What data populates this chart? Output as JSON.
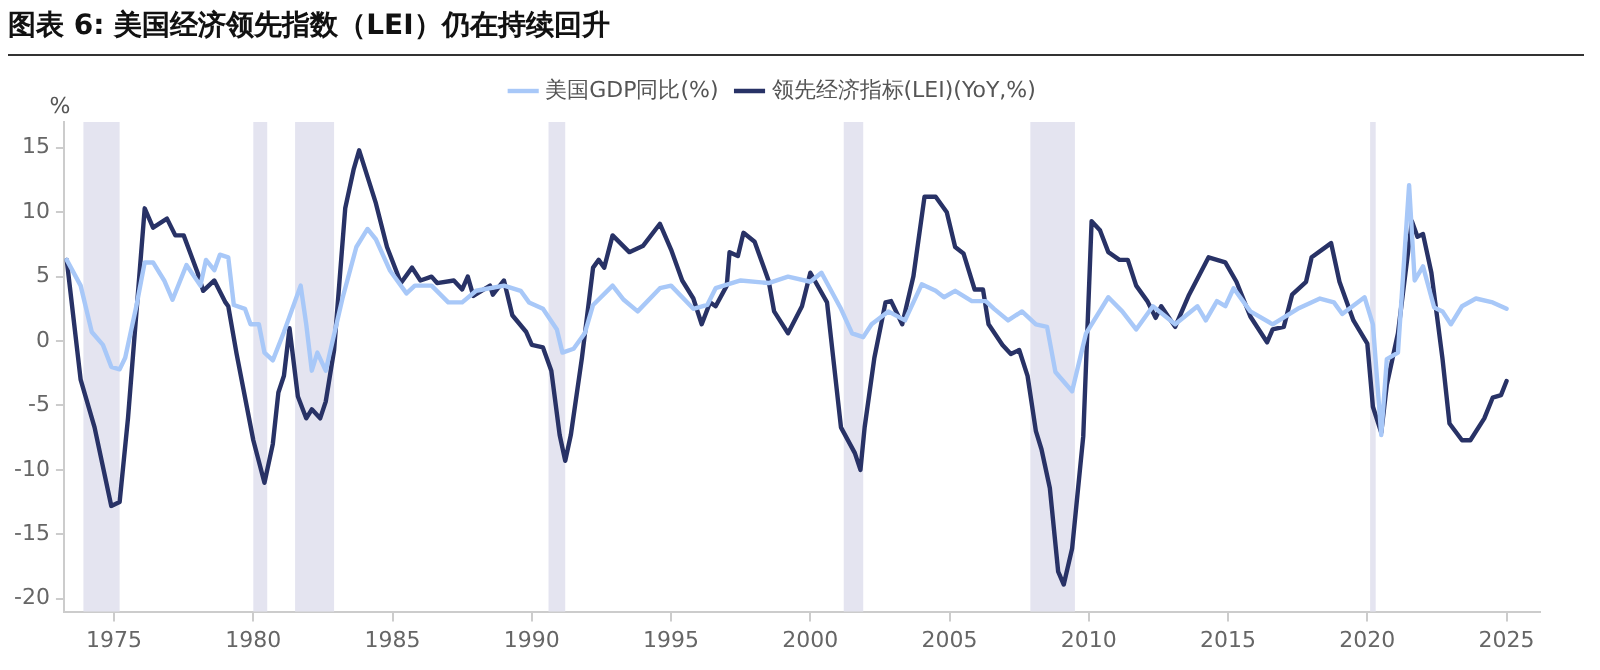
{
  "chart_data": {
    "type": "line",
    "title": "图表 6: 美国经济领先指数（LEI）仍在持续回升",
    "ylabel": "%",
    "xlim": [
      1973.2,
      2026.2
    ],
    "xticks": [
      1975,
      1980,
      1985,
      1990,
      1995,
      2000,
      2005,
      2010,
      2015,
      2020,
      2025
    ],
    "ylim": [
      -21,
      17
    ],
    "yticks": [
      -20,
      -15,
      -10,
      -5,
      0,
      5,
      10,
      15
    ],
    "grid": false,
    "legend": "top",
    "marker": "none",
    "line_style": "solid",
    "bands": [
      {
        "axis": "x",
        "from": 1973.9,
        "to": 1975.2,
        "color": "#e4e4f0"
      },
      {
        "axis": "x",
        "from": 1980.0,
        "to": 1980.5,
        "color": "#e4e4f0"
      },
      {
        "axis": "x",
        "from": 1981.5,
        "to": 1982.9,
        "color": "#e4e4f0"
      },
      {
        "axis": "x",
        "from": 1990.6,
        "to": 1991.2,
        "color": "#e4e4f0"
      },
      {
        "axis": "x",
        "from": 2001.2,
        "to": 2001.9,
        "color": "#e4e4f0"
      },
      {
        "axis": "x",
        "from": 2007.9,
        "to": 2009.5,
        "color": "#e4e4f0"
      },
      {
        "axis": "x",
        "from": 2020.1,
        "to": 2020.3,
        "color": "#e4e4f0"
      }
    ],
    "series": [
      {
        "name": "美国GDP同比(%)",
        "color": "#a8c8f8",
        "x": [
          1973.3,
          1973.8,
          1974.2,
          1974.6,
          1974.9,
          1975.2,
          1975.4,
          1975.8,
          1976.1,
          1976.4,
          1976.8,
          1977.1,
          1977.6,
          1978.1,
          1978.3,
          1978.6,
          1978.8,
          1979.1,
          1979.3,
          1979.7,
          1979.9,
          1980.2,
          1980.4,
          1980.7,
          1981.1,
          1981.7,
          1981.9,
          1982.1,
          1982.3,
          1982.6,
          1983.2,
          1983.7,
          1984.1,
          1984.4,
          1984.9,
          1985.5,
          1985.8,
          1986.4,
          1987.0,
          1987.5,
          1988.0,
          1989.0,
          1989.6,
          1989.9,
          1990.4,
          1990.9,
          1991.1,
          1991.5,
          1991.9,
          1992.2,
          1992.9,
          1993.3,
          1993.8,
          1994.6,
          1995.0,
          1995.8,
          1996.3,
          1996.6,
          1997.5,
          1998.5,
          1999.2,
          2000.0,
          2000.4,
          2001.1,
          2001.5,
          2001.9,
          2002.2,
          2002.8,
          2003.4,
          2004.0,
          2004.5,
          2004.8,
          2005.2,
          2005.8,
          2006.3,
          2006.6,
          2007.1,
          2007.6,
          2008.1,
          2008.5,
          2008.8,
          2009.4,
          2009.9,
          2010.7,
          2011.2,
          2011.7,
          2012.3,
          2013.1,
          2013.9,
          2014.2,
          2014.6,
          2014.9,
          2015.2,
          2015.8,
          2016.6,
          2017.5,
          2018.3,
          2018.8,
          2019.1,
          2019.9,
          2020.2,
          2020.5,
          2020.7,
          2021.1,
          2021.5,
          2021.7,
          2022.0,
          2022.4,
          2022.7,
          2023.0,
          2023.4,
          2023.9,
          2024.5,
          2025.0
        ],
        "values": [
          6.3,
          4.3,
          0.7,
          -0.3,
          -2,
          -2.2,
          -1.3,
          2.7,
          6.1,
          6.1,
          4.7,
          3.2,
          5.9,
          4.3,
          6.3,
          5.5,
          6.7,
          6.5,
          2.8,
          2.5,
          1.3,
          1.3,
          -0.9,
          -1.5,
          0.7,
          4.3,
          1.3,
          -2.3,
          -0.9,
          -2.3,
          3.3,
          7.3,
          8.7,
          7.9,
          5.5,
          3.7,
          4.3,
          4.3,
          3,
          3,
          3.9,
          4.3,
          3.9,
          3,
          2.5,
          0.9,
          -0.9,
          -0.6,
          0.6,
          2.8,
          4.3,
          3.2,
          2.3,
          4.1,
          4.3,
          2.5,
          2.8,
          4.1,
          4.7,
          4.5,
          5,
          4.6,
          5.3,
          2.5,
          0.6,
          0.3,
          1.3,
          2.3,
          1.6,
          4.4,
          3.9,
          3.4,
          3.9,
          3.1,
          3.1,
          2.5,
          1.6,
          2.3,
          1.3,
          1.1,
          -2.4,
          -3.9,
          0.6,
          3.4,
          2.3,
          0.9,
          2.7,
          1.3,
          2.7,
          1.6,
          3.1,
          2.7,
          4.1,
          2.3,
          1.3,
          2.5,
          3.3,
          3,
          2.1,
          3.4,
          1.3,
          -7.3,
          -1.4,
          -0.9,
          12.1,
          4.7,
          5.8,
          2.6,
          2.3,
          1.3,
          2.7,
          3.3,
          3,
          2.5
        ]
      },
      {
        "name": "领先经济指标(LEI)(YoY,%)",
        "color": "#283266",
        "x": [
          1973.3,
          1973.8,
          1974.3,
          1974.9,
          1975.2,
          1975.5,
          1976.1,
          1976.4,
          1976.9,
          1977.2,
          1977.5,
          1978.0,
          1978.2,
          1978.6,
          1979.0,
          1979.1,
          1979.4,
          1980.0,
          1980.4,
          1980.7,
          1980.9,
          1981.1,
          1981.3,
          1981.6,
          1981.9,
          1982.1,
          1982.4,
          1982.6,
          1982.9,
          1983.3,
          1983.6,
          1983.8,
          1984.4,
          1984.8,
          1985.3,
          1985.7,
          1986.0,
          1986.4,
          1986.6,
          1987.2,
          1987.5,
          1987.7,
          1987.9,
          1988.5,
          1988.6,
          1989.0,
          1989.3,
          1989.8,
          1990.0,
          1990.4,
          1990.7,
          1991.0,
          1991.2,
          1991.4,
          1991.8,
          1992.2,
          1992.4,
          1992.6,
          1992.9,
          1993.5,
          1994.0,
          1994.6,
          1995.0,
          1995.4,
          1995.8,
          1996.1,
          1996.4,
          1996.6,
          1997.0,
          1997.1,
          1997.4,
          1997.6,
          1998.0,
          1998.5,
          1998.7,
          1999.2,
          1999.7,
          2000.0,
          2000.6,
          2001.1,
          2001.6,
          2001.8,
          2001.95,
          2002.3,
          2002.7,
          2002.9,
          2003.3,
          2003.7,
          2004.1,
          2004.5,
          2004.9,
          2005.2,
          2005.5,
          2005.9,
          2006.2,
          2006.4,
          2006.9,
          2007.2,
          2007.5,
          2007.8,
          2008.1,
          2008.3,
          2008.6,
          2008.9,
          2009.1,
          2009.4,
          2009.8,
          2010.1,
          2010.4,
          2010.7,
          2011.1,
          2011.4,
          2011.7,
          2012.1,
          2012.4,
          2012.6,
          2013.1,
          2013.6,
          2014.3,
          2014.9,
          2015.3,
          2015.8,
          2016.4,
          2016.6,
          2017.0,
          2017.3,
          2017.8,
          2018.0,
          2018.7,
          2019.0,
          2019.5,
          2020.0,
          2020.2,
          2020.5,
          2020.7,
          2021.1,
          2021.6,
          2021.8,
          2022.0,
          2022.3,
          2022.7,
          2022.95,
          2023.4,
          2023.7,
          2024.2,
          2024.5,
          2024.8,
          2025.0
        ],
        "values": [
          6.3,
          -3,
          -6.7,
          -12.8,
          -12.5,
          -6,
          10.3,
          8.8,
          9.5,
          8.2,
          8.2,
          5.3,
          3.9,
          4.7,
          3,
          2.7,
          -1,
          -7.7,
          -11,
          -8,
          -4,
          -2.7,
          1,
          -4.3,
          -6,
          -5.3,
          -6,
          -4.7,
          -0.7,
          10.3,
          13.3,
          14.8,
          10.7,
          7.3,
          4.5,
          5.7,
          4.7,
          5,
          4.5,
          4.7,
          4,
          5,
          3.5,
          4.3,
          3.6,
          4.7,
          2,
          0.7,
          -0.3,
          -0.5,
          -2.3,
          -7.3,
          -9.3,
          -7.3,
          -1.3,
          5.7,
          6.3,
          5.7,
          8.2,
          6.9,
          7.4,
          9.1,
          7.1,
          4.7,
          3.3,
          1.3,
          3,
          2.7,
          4.3,
          6.9,
          6.6,
          8.4,
          7.7,
          4.7,
          2.3,
          0.6,
          2.7,
          5.3,
          3,
          -6.7,
          -8.7,
          -10,
          -6.7,
          -1.3,
          3,
          3.1,
          1.3,
          5,
          11.2,
          11.2,
          10,
          7.3,
          6.8,
          4,
          4,
          1.3,
          -0.3,
          -1,
          -0.7,
          -2.7,
          -7,
          -8.4,
          -11.4,
          -17.9,
          -18.9,
          -16.1,
          -7.4,
          9.3,
          8.6,
          6.9,
          6.3,
          6.3,
          4.3,
          3.1,
          1.8,
          2.7,
          1.1,
          3.6,
          6.5,
          6.1,
          4.6,
          1.9,
          -0.1,
          0.9,
          1.1,
          3.6,
          4.6,
          6.5,
          7.6,
          4.6,
          1.6,
          -0.2,
          -5.1,
          -7.1,
          -3.4,
          0.6,
          9.3,
          8.1,
          8.3,
          5.3,
          -1.4,
          -6.4,
          -7.7,
          -7.7,
          -6,
          -4.4,
          -4.2,
          -3.1
        ]
      }
    ]
  }
}
